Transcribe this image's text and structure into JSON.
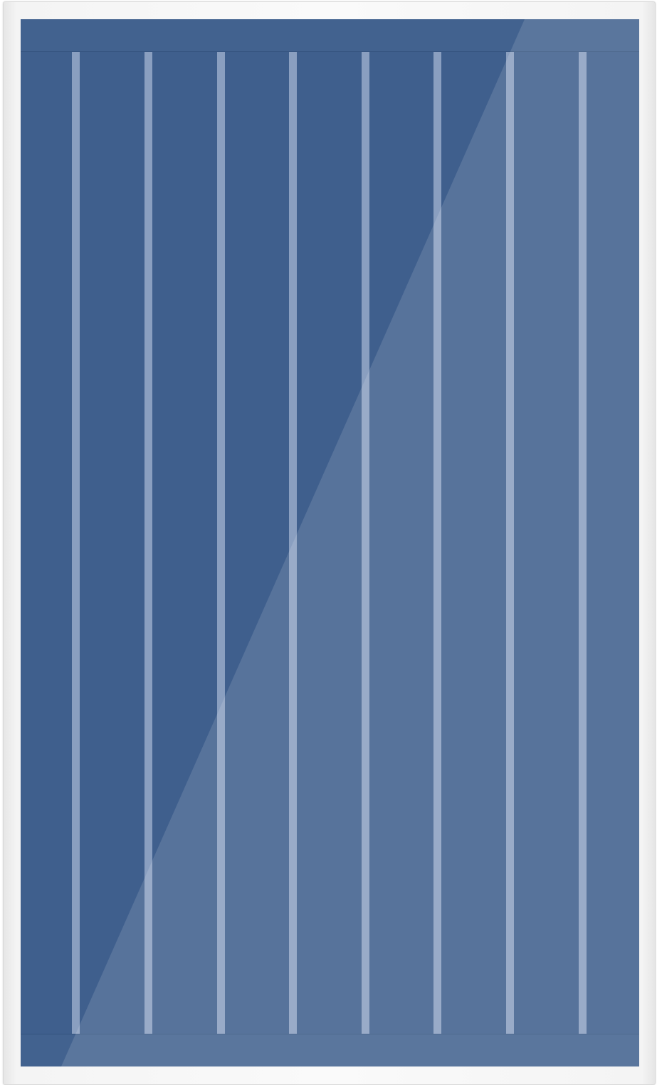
{
  "collector": {
    "tube_count": 8,
    "colors": {
      "frame": "#f4f4f4",
      "absorber": "#3f5f8d",
      "header_rail": "#42628f",
      "tube": "#8a9fc0",
      "glare": "#ffffff"
    }
  }
}
